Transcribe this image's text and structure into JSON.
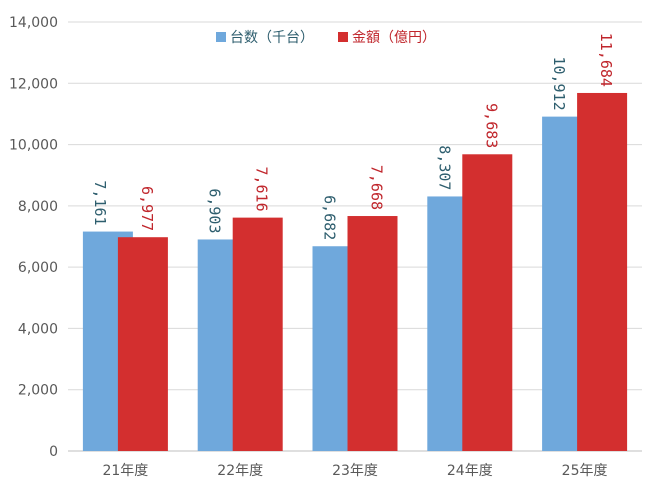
{
  "chart_data": {
    "type": "bar",
    "categories": [
      "21年度",
      "22年度",
      "23年度",
      "24年度",
      "25年度"
    ],
    "series": [
      {
        "name": "台数（千台）",
        "values": [
          7161,
          6903,
          6682,
          8307,
          10912
        ],
        "labels": [
          "7,161",
          "6,903",
          "6,682",
          "8,307",
          "10,912"
        ],
        "color": "#6fa8dc",
        "label_color": "#2e5e6e"
      },
      {
        "name": "金額（億円）",
        "values": [
          6977,
          7616,
          7668,
          9683,
          11684
        ],
        "labels": [
          "6,977",
          "7,616",
          "7,668",
          "9,683",
          "11,684"
        ],
        "color": "#d32f2f",
        "label_color": "#c0262c"
      }
    ],
    "ylim": [
      0,
      14000
    ],
    "yticks": [
      0,
      2000,
      4000,
      6000,
      8000,
      10000,
      12000,
      14000
    ],
    "ytick_labels": [
      "0",
      "2,000",
      "4,000",
      "6,000",
      "8,000",
      "10,000",
      "12,000",
      "14,000"
    ],
    "grid": true,
    "legend_position": "top"
  }
}
